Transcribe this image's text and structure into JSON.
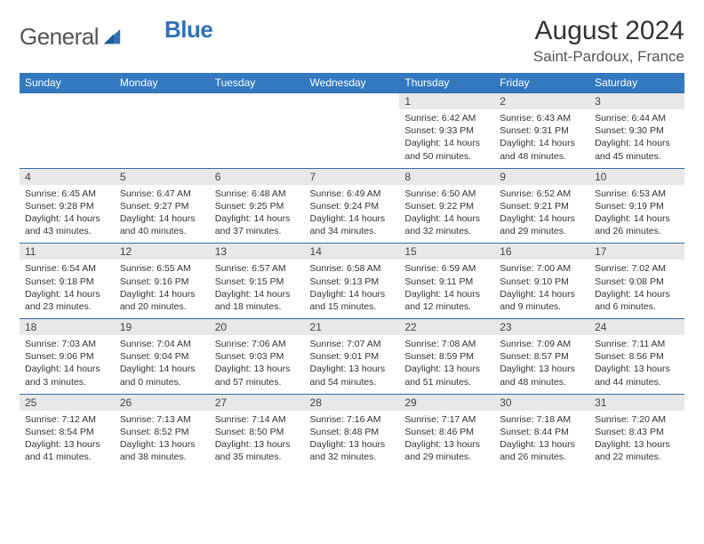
{
  "logo": {
    "text1": "General",
    "text2": "Blue"
  },
  "title": "August 2024",
  "location": "Saint-Pardoux, France",
  "colors": {
    "header_bg": "#3279bf",
    "header_text": "#ffffff",
    "border": "#2f6da8",
    "daynum_bg": "#e8e8e8",
    "logo_blue": "#2e72b8"
  },
  "weekdays": [
    "Sunday",
    "Monday",
    "Tuesday",
    "Wednesday",
    "Thursday",
    "Friday",
    "Saturday"
  ],
  "weeks": [
    [
      null,
      null,
      null,
      null,
      {
        "n": "1",
        "sr": "6:42 AM",
        "ss": "9:33 PM",
        "dl": "14 hours and 50 minutes."
      },
      {
        "n": "2",
        "sr": "6:43 AM",
        "ss": "9:31 PM",
        "dl": "14 hours and 48 minutes."
      },
      {
        "n": "3",
        "sr": "6:44 AM",
        "ss": "9:30 PM",
        "dl": "14 hours and 45 minutes."
      }
    ],
    [
      {
        "n": "4",
        "sr": "6:45 AM",
        "ss": "9:28 PM",
        "dl": "14 hours and 43 minutes."
      },
      {
        "n": "5",
        "sr": "6:47 AM",
        "ss": "9:27 PM",
        "dl": "14 hours and 40 minutes."
      },
      {
        "n": "6",
        "sr": "6:48 AM",
        "ss": "9:25 PM",
        "dl": "14 hours and 37 minutes."
      },
      {
        "n": "7",
        "sr": "6:49 AM",
        "ss": "9:24 PM",
        "dl": "14 hours and 34 minutes."
      },
      {
        "n": "8",
        "sr": "6:50 AM",
        "ss": "9:22 PM",
        "dl": "14 hours and 32 minutes."
      },
      {
        "n": "9",
        "sr": "6:52 AM",
        "ss": "9:21 PM",
        "dl": "14 hours and 29 minutes."
      },
      {
        "n": "10",
        "sr": "6:53 AM",
        "ss": "9:19 PM",
        "dl": "14 hours and 26 minutes."
      }
    ],
    [
      {
        "n": "11",
        "sr": "6:54 AM",
        "ss": "9:18 PM",
        "dl": "14 hours and 23 minutes."
      },
      {
        "n": "12",
        "sr": "6:55 AM",
        "ss": "9:16 PM",
        "dl": "14 hours and 20 minutes."
      },
      {
        "n": "13",
        "sr": "6:57 AM",
        "ss": "9:15 PM",
        "dl": "14 hours and 18 minutes."
      },
      {
        "n": "14",
        "sr": "6:58 AM",
        "ss": "9:13 PM",
        "dl": "14 hours and 15 minutes."
      },
      {
        "n": "15",
        "sr": "6:59 AM",
        "ss": "9:11 PM",
        "dl": "14 hours and 12 minutes."
      },
      {
        "n": "16",
        "sr": "7:00 AM",
        "ss": "9:10 PM",
        "dl": "14 hours and 9 minutes."
      },
      {
        "n": "17",
        "sr": "7:02 AM",
        "ss": "9:08 PM",
        "dl": "14 hours and 6 minutes."
      }
    ],
    [
      {
        "n": "18",
        "sr": "7:03 AM",
        "ss": "9:06 PM",
        "dl": "14 hours and 3 minutes."
      },
      {
        "n": "19",
        "sr": "7:04 AM",
        "ss": "9:04 PM",
        "dl": "14 hours and 0 minutes."
      },
      {
        "n": "20",
        "sr": "7:06 AM",
        "ss": "9:03 PM",
        "dl": "13 hours and 57 minutes."
      },
      {
        "n": "21",
        "sr": "7:07 AM",
        "ss": "9:01 PM",
        "dl": "13 hours and 54 minutes."
      },
      {
        "n": "22",
        "sr": "7:08 AM",
        "ss": "8:59 PM",
        "dl": "13 hours and 51 minutes."
      },
      {
        "n": "23",
        "sr": "7:09 AM",
        "ss": "8:57 PM",
        "dl": "13 hours and 48 minutes."
      },
      {
        "n": "24",
        "sr": "7:11 AM",
        "ss": "8:56 PM",
        "dl": "13 hours and 44 minutes."
      }
    ],
    [
      {
        "n": "25",
        "sr": "7:12 AM",
        "ss": "8:54 PM",
        "dl": "13 hours and 41 minutes."
      },
      {
        "n": "26",
        "sr": "7:13 AM",
        "ss": "8:52 PM",
        "dl": "13 hours and 38 minutes."
      },
      {
        "n": "27",
        "sr": "7:14 AM",
        "ss": "8:50 PM",
        "dl": "13 hours and 35 minutes."
      },
      {
        "n": "28",
        "sr": "7:16 AM",
        "ss": "8:48 PM",
        "dl": "13 hours and 32 minutes."
      },
      {
        "n": "29",
        "sr": "7:17 AM",
        "ss": "8:46 PM",
        "dl": "13 hours and 29 minutes."
      },
      {
        "n": "30",
        "sr": "7:18 AM",
        "ss": "8:44 PM",
        "dl": "13 hours and 26 minutes."
      },
      {
        "n": "31",
        "sr": "7:20 AM",
        "ss": "8:43 PM",
        "dl": "13 hours and 22 minutes."
      }
    ]
  ]
}
